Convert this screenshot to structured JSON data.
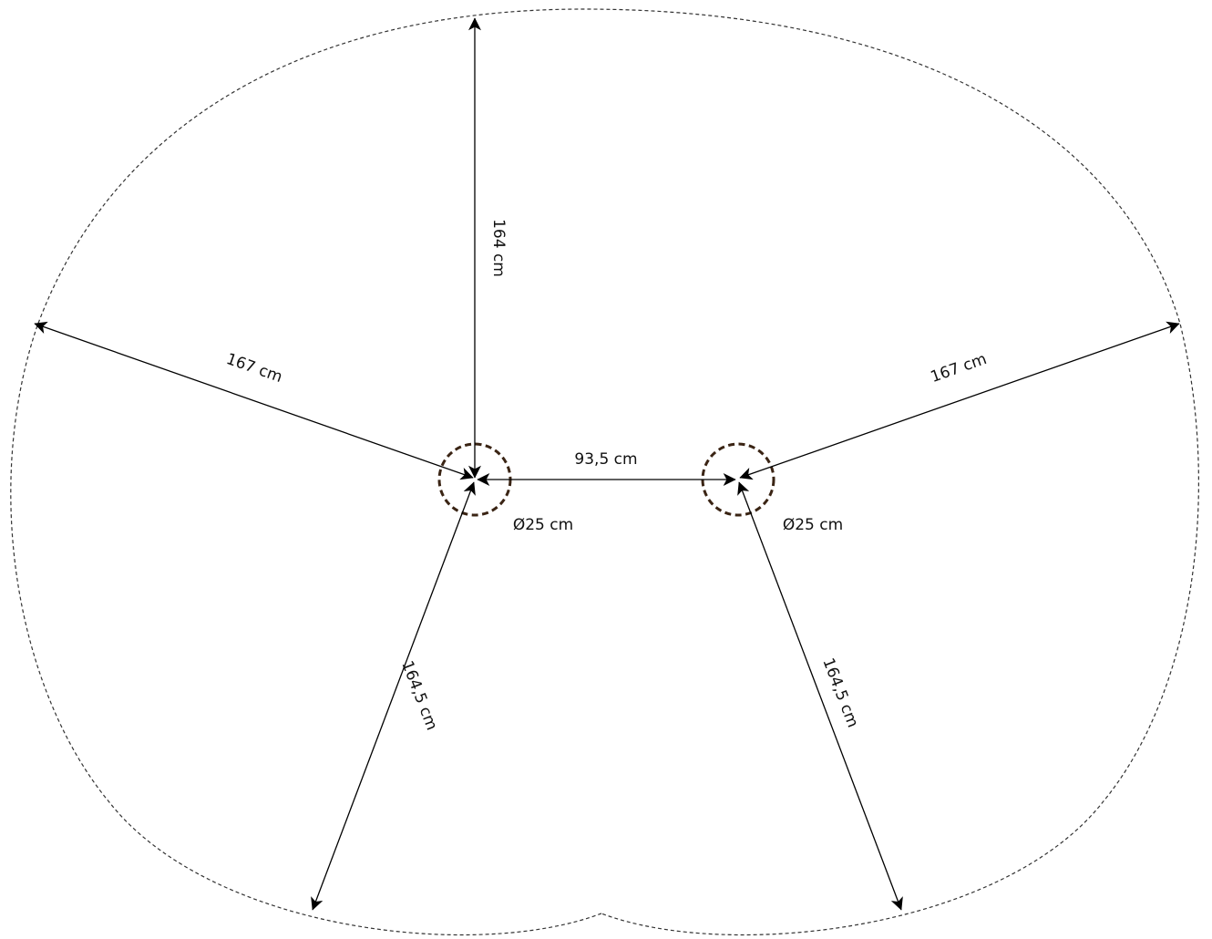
{
  "labels": {
    "top_radius": "164 cm",
    "left_radius": "167 cm",
    "right_radius": "167 cm",
    "center_distance": "93,5 cm",
    "left_diameter": "Ø25 cm",
    "right_diameter": "Ø25 cm",
    "bottom_left_radius": "164,5 cm",
    "bottom_right_radius": "164,5 cm"
  },
  "colors": {
    "outline": "#333333",
    "dimension_lines": "#000000",
    "center_rings": "#3a2414"
  }
}
